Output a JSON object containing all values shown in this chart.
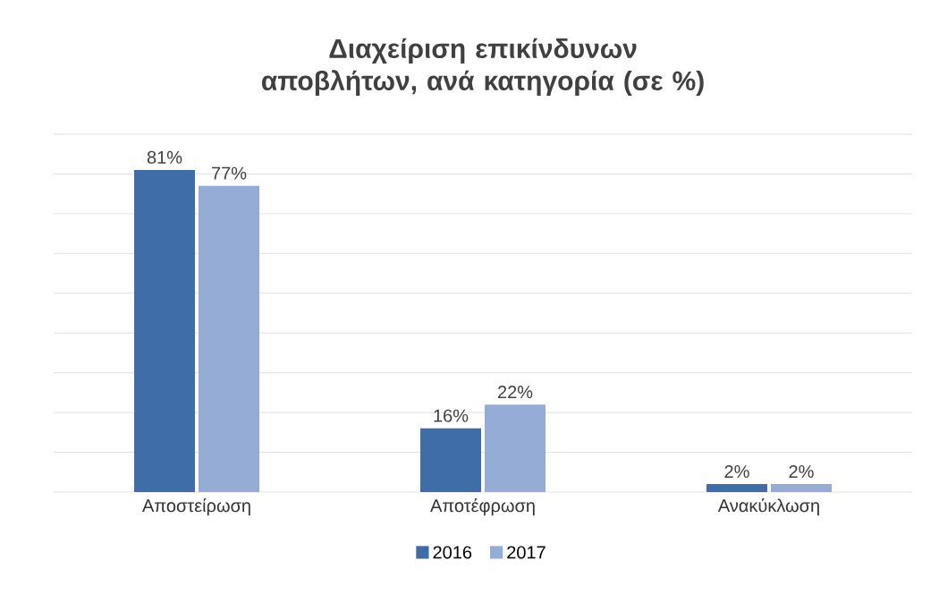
{
  "chart_data": {
    "type": "bar",
    "title": "Διαχείριση επικίνδυνων αποβλήτων, ανά κατηγορία (σε %)",
    "categories": [
      "Αποστείρωση",
      "Αποτέφρωση",
      "Ανακύκλωση"
    ],
    "series": [
      {
        "name": "2016",
        "color": "#3e6da8",
        "values": [
          81,
          16,
          2
        ],
        "value_labels": [
          "81%",
          "16%",
          "2%"
        ]
      },
      {
        "name": "2017",
        "color": "#94acd6",
        "values": [
          77,
          22,
          2
        ],
        "value_labels": [
          "77%",
          "22%",
          "2%"
        ]
      }
    ],
    "ylim": [
      0,
      90
    ],
    "yticks": [
      {
        "value": 0,
        "label": null
      },
      {
        "value": 10,
        "label": null
      },
      {
        "value": 20,
        "label": null
      },
      {
        "value": 30,
        "label": null
      },
      {
        "value": 40,
        "label": null
      },
      {
        "value": 50,
        "label": null
      },
      {
        "value": 60,
        "label": null
      },
      {
        "value": 70,
        "label": null
      },
      {
        "value": 80,
        "label": null
      },
      {
        "value": 90,
        "label": null
      }
    ],
    "grid": "y",
    "legend": "bottom",
    "tick_labels": "x"
  }
}
